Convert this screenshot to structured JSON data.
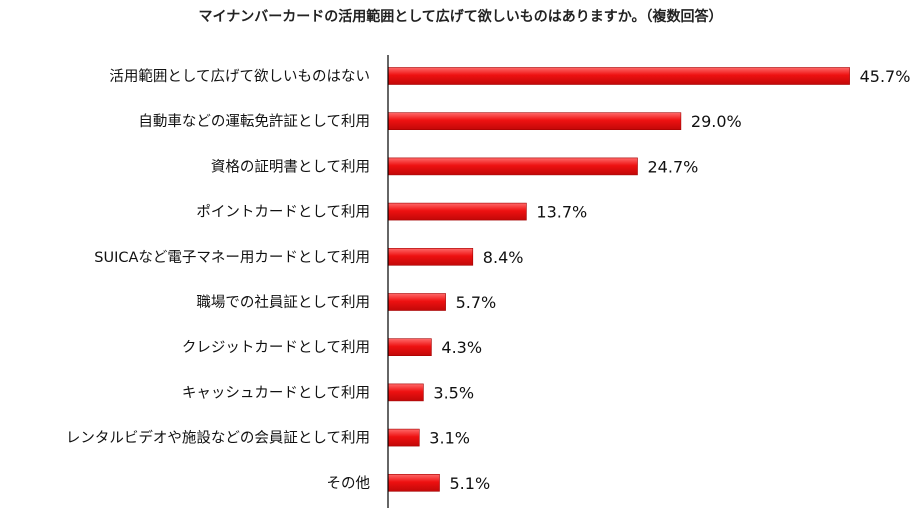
{
  "chart_data": {
    "type": "bar",
    "orientation": "horizontal",
    "title": "マイナンバーカードの活用範囲として広げて欲しいものはありますか。（複数回答）",
    "categories": [
      "活用範囲として広げて欲しいものはない",
      "自動車などの運転免許証として利用",
      "資格の証明書として利用",
      "ポイントカードとして利用",
      "SUICAなど電子マネー用カードとして利用",
      "職場での社員証として利用",
      "クレジットカードとして利用",
      "キャッシュカードとして利用",
      "レンタルビデオや施設などの会員証として利用",
      "その他"
    ],
    "values": [
      45.7,
      29.0,
      24.7,
      13.7,
      8.4,
      5.7,
      4.3,
      3.5,
      3.1,
      5.1
    ],
    "value_labels": [
      "45.7%",
      "29.0%",
      "24.7%",
      "13.7%",
      "8.4%",
      "5.7%",
      "4.3%",
      "3.5%",
      "3.1%",
      "5.1%"
    ],
    "xlim": [
      0,
      50
    ],
    "grid": false,
    "legend": "none",
    "bar_color": "#e31010",
    "axis_color": "#000000"
  }
}
